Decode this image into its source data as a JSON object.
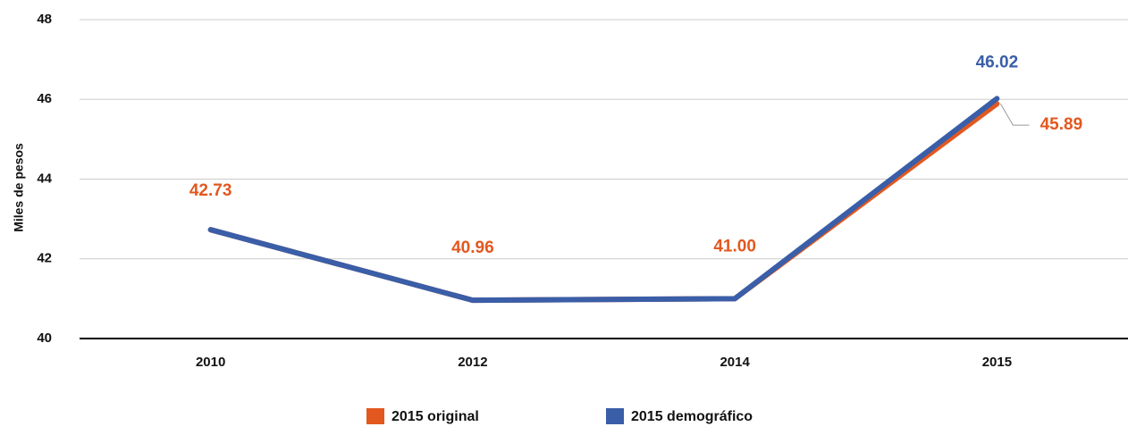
{
  "chart_data": {
    "type": "line",
    "y_label": "Miles de pesos",
    "categories": [
      "2010",
      "2012",
      "2014",
      "2015"
    ],
    "series": [
      {
        "name": "2015 original",
        "color": "#e2581f",
        "values": [
          42.73,
          40.96,
          41.0,
          45.89
        ],
        "value_labels": [
          "42.73",
          "40.96",
          "41.00",
          "45.89"
        ]
      },
      {
        "name": "2015 demográfico",
        "color": "#3a5ea8",
        "values": [
          42.73,
          40.96,
          41.0,
          46.02
        ],
        "value_labels": [
          null,
          null,
          null,
          "46.02"
        ]
      }
    ],
    "ylim": [
      40,
      48
    ],
    "yticks": [
      40,
      42,
      44,
      46,
      48
    ],
    "grid": true,
    "legend": "bottom"
  }
}
